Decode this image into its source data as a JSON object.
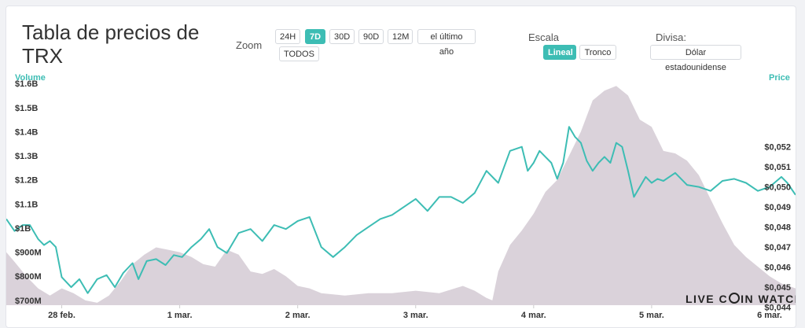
{
  "title": "Tabla de precios de TRX",
  "zoom": {
    "label": "Zoom",
    "buttons": [
      "24H",
      "7D",
      "30D",
      "90D",
      "12M",
      "el último año",
      "TODOS"
    ],
    "active": "7D"
  },
  "scale": {
    "label": "Escala",
    "buttons": [
      "Lineal",
      "Tronco"
    ],
    "active": "Lineal"
  },
  "currency": {
    "label": "Divisa:",
    "value": "Dólar estadounidense"
  },
  "logo": {
    "left": "LIVE C",
    "right": "IN WATCH"
  },
  "colors": {
    "price_line": "#3dbdb4",
    "volume_area": "#d8d0d8",
    "axis_title": "#3dbdb4"
  },
  "chart_data": {
    "type": "line",
    "title": "Tabla de precios de TRX",
    "x_ticks": [
      "28 feb.",
      "1 mar.",
      "2 mar.",
      "3 mar.",
      "4 mar.",
      "5 mar.",
      "6 mar."
    ],
    "x_range": [
      -0.47,
      6.22
    ],
    "y_left": {
      "label": "Volume",
      "ticks": [
        "$1.6B",
        "$1.5B",
        "$1.4B",
        "$1.3B",
        "$1.2B",
        "$1.1B",
        "$1B",
        "$900M",
        "$800M",
        "$700M"
      ],
      "range": [
        0.68,
        1.62
      ]
    },
    "y_right": {
      "label": "Price",
      "ticks": [
        "$0,052",
        "$0,051",
        "$0,050",
        "$0,049",
        "$0,048",
        "$0,047",
        "$0,046",
        "$0,045",
        "$0,044"
      ],
      "range": [
        0.0441,
        0.0554
      ]
    },
    "series": [
      {
        "name": "Price",
        "axis": "right",
        "x": [
          -0.47,
          -0.4,
          -0.33,
          -0.27,
          -0.2,
          -0.15,
          -0.1,
          -0.05,
          0.0,
          0.08,
          0.15,
          0.22,
          0.3,
          0.38,
          0.45,
          0.52,
          0.6,
          0.65,
          0.72,
          0.8,
          0.88,
          0.95,
          1.02,
          1.1,
          1.18,
          1.25,
          1.32,
          1.4,
          1.5,
          1.6,
          1.7,
          1.8,
          1.9,
          2.0,
          2.1,
          2.2,
          2.3,
          2.4,
          2.5,
          2.6,
          2.7,
          2.8,
          2.9,
          3.0,
          3.1,
          3.2,
          3.3,
          3.4,
          3.5,
          3.6,
          3.7,
          3.8,
          3.9,
          3.95,
          4.0,
          4.05,
          4.1,
          4.15,
          4.2,
          4.25,
          4.3,
          4.35,
          4.4,
          4.45,
          4.5,
          4.55,
          4.6,
          4.65,
          4.7,
          4.75,
          4.8,
          4.85,
          4.9,
          4.95,
          5.0,
          5.05,
          5.1,
          5.2,
          5.3,
          5.4,
          5.5,
          5.6,
          5.7,
          5.8,
          5.9,
          6.0,
          6.1,
          6.15,
          6.22
        ],
        "y": [
          0.0484,
          0.0478,
          0.0481,
          0.0481,
          0.0474,
          0.0471,
          0.0473,
          0.047,
          0.0455,
          0.045,
          0.0454,
          0.0447,
          0.0454,
          0.0456,
          0.045,
          0.0457,
          0.0462,
          0.0454,
          0.0463,
          0.0464,
          0.0461,
          0.0466,
          0.0465,
          0.047,
          0.0474,
          0.0479,
          0.047,
          0.0467,
          0.0477,
          0.0479,
          0.0473,
          0.0481,
          0.0479,
          0.0483,
          0.0485,
          0.047,
          0.0465,
          0.047,
          0.0476,
          0.048,
          0.0484,
          0.0486,
          0.049,
          0.0494,
          0.0488,
          0.0495,
          0.0495,
          0.0492,
          0.0497,
          0.0508,
          0.0502,
          0.0518,
          0.052,
          0.0508,
          0.0512,
          0.0518,
          0.0515,
          0.0512,
          0.0504,
          0.0512,
          0.053,
          0.0525,
          0.0522,
          0.0513,
          0.0508,
          0.0512,
          0.0515,
          0.0512,
          0.0522,
          0.052,
          0.0508,
          0.0495,
          0.05,
          0.0505,
          0.0502,
          0.0504,
          0.0503,
          0.0507,
          0.0501,
          0.05,
          0.0498,
          0.0503,
          0.0504,
          0.0502,
          0.0498,
          0.05,
          0.0505,
          0.0502,
          0.0496
        ]
      },
      {
        "name": "Volume",
        "axis": "left",
        "x": [
          -0.47,
          -0.4,
          -0.3,
          -0.2,
          -0.1,
          0.0,
          0.1,
          0.2,
          0.3,
          0.4,
          0.5,
          0.6,
          0.7,
          0.8,
          0.9,
          1.0,
          1.1,
          1.2,
          1.3,
          1.4,
          1.5,
          1.6,
          1.7,
          1.8,
          1.9,
          2.0,
          2.1,
          2.2,
          2.4,
          2.6,
          2.8,
          3.0,
          3.2,
          3.4,
          3.5,
          3.6,
          3.65,
          3.7,
          3.8,
          3.9,
          4.0,
          4.1,
          4.2,
          4.3,
          4.4,
          4.5,
          4.6,
          4.7,
          4.8,
          4.9,
          5.0,
          5.1,
          5.2,
          5.3,
          5.4,
          5.5,
          5.6,
          5.7,
          5.8,
          5.9,
          6.0,
          6.1,
          6.22
        ],
        "y": [
          0.9,
          0.86,
          0.8,
          0.75,
          0.72,
          0.75,
          0.73,
          0.7,
          0.69,
          0.72,
          0.78,
          0.85,
          0.89,
          0.92,
          0.91,
          0.9,
          0.88,
          0.85,
          0.84,
          0.91,
          0.89,
          0.82,
          0.81,
          0.83,
          0.8,
          0.76,
          0.75,
          0.73,
          0.72,
          0.73,
          0.73,
          0.74,
          0.73,
          0.76,
          0.74,
          0.71,
          0.7,
          0.82,
          0.93,
          0.99,
          1.06,
          1.15,
          1.2,
          1.3,
          1.4,
          1.53,
          1.57,
          1.59,
          1.55,
          1.45,
          1.42,
          1.32,
          1.31,
          1.28,
          1.22,
          1.12,
          1.02,
          0.93,
          0.88,
          0.84,
          0.8,
          0.77,
          0.75
        ]
      }
    ]
  }
}
